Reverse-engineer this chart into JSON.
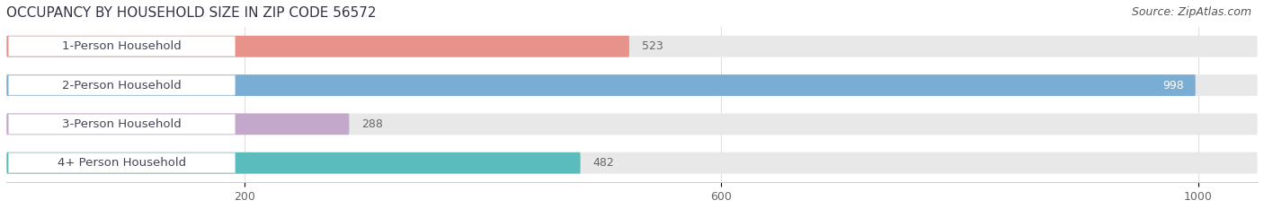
{
  "title": "OCCUPANCY BY HOUSEHOLD SIZE IN ZIP CODE 56572",
  "source": "Source: ZipAtlas.com",
  "categories": [
    "1-Person Household",
    "2-Person Household",
    "3-Person Household",
    "4+ Person Household"
  ],
  "values": [
    523,
    998,
    288,
    482
  ],
  "bar_colors": [
    "#e8928c",
    "#7aadd4",
    "#c4a8cc",
    "#5bbcbe"
  ],
  "xlim_max": 1050,
  "xticks": [
    200,
    600,
    1000
  ],
  "background_color": "#ffffff",
  "bar_track_color": "#e8e8e8",
  "title_fontsize": 11,
  "source_fontsize": 9,
  "label_fontsize": 9.5,
  "value_fontsize": 9,
  "tick_fontsize": 9,
  "label_color": "#444455",
  "value_color_inside": "#ffffff",
  "value_color_outside": "#666666"
}
